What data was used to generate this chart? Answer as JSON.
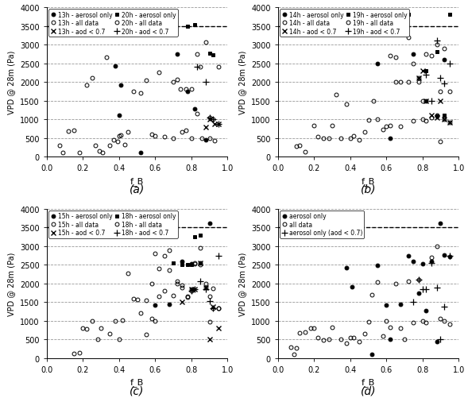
{
  "subplots": [
    {
      "label": "(a)",
      "hours": [
        "13h",
        "20h"
      ],
      "series": [
        {
          "hour": "13h",
          "type": "aerosol only",
          "marker": "o",
          "filled": true,
          "x": [
            0.38,
            0.41,
            0.4,
            0.52,
            0.72,
            0.78,
            0.82,
            0.88
          ],
          "y": [
            2430,
            1920,
            1100,
            100,
            2750,
            1750,
            1270,
            450
          ]
        },
        {
          "hour": "13h",
          "type": "all data",
          "marker": "o",
          "filled": false,
          "x": [
            0.07,
            0.09,
            0.12,
            0.15,
            0.18,
            0.22,
            0.25,
            0.27,
            0.29,
            0.31,
            0.33,
            0.35,
            0.37,
            0.39,
            0.4,
            0.41,
            0.43,
            0.45,
            0.48,
            0.52,
            0.55,
            0.58,
            0.6,
            0.62,
            0.65,
            0.7,
            0.72,
            0.75,
            0.77,
            0.8,
            0.83,
            0.86,
            0.9,
            0.93
          ],
          "y": [
            300,
            100,
            680,
            700,
            100,
            1920,
            2110,
            300,
            150,
            100,
            2650,
            300,
            450,
            400,
            550,
            580,
            330,
            660,
            1750,
            1700,
            2040,
            600,
            550,
            2250,
            530,
            500,
            2060,
            660,
            1800,
            490,
            1150,
            480,
            500,
            430
          ]
        },
        {
          "hour": "13h",
          "type": "aod < 0.7",
          "marker": "x",
          "filled": false,
          "x": [
            0.88,
            0.9,
            0.93,
            0.95
          ],
          "y": [
            790,
            1000,
            870,
            870
          ]
        },
        {
          "hour": "20h",
          "type": "aerosol only",
          "marker": "s",
          "filled": true,
          "x": [
            0.78,
            0.82,
            0.9,
            0.92
          ],
          "y": [
            3500,
            3540,
            2770,
            2730
          ]
        },
        {
          "hour": "20h",
          "type": "all data",
          "marker": "o",
          "filled": false,
          "x": [
            0.7,
            0.74,
            0.77,
            0.8,
            0.83,
            0.85,
            0.88,
            0.9,
            0.92,
            0.95
          ],
          "y": [
            2000,
            1800,
            700,
            1800,
            2750,
            2400,
            3060,
            1050,
            1000,
            2400
          ]
        },
        {
          "hour": "20h",
          "type": "aod < 0.7",
          "marker": "+",
          "filled": false,
          "x": [
            0.83,
            0.88,
            0.9,
            0.92,
            0.95
          ],
          "y": [
            2400,
            2000,
            1050,
            1000,
            870
          ]
        }
      ],
      "hline": 3500,
      "yticks": [
        0,
        500,
        1000,
        1500,
        2000,
        2500,
        3000,
        3500,
        4000
      ],
      "xticks": [
        0.0,
        0.2,
        0.4,
        0.6,
        0.8,
        1.0
      ],
      "show_ylabel": true,
      "show_ytick_labels": true
    },
    {
      "label": "(b)",
      "hours": [
        "14h",
        "19h"
      ],
      "series": [
        {
          "hour": "14h",
          "type": "aerosol only",
          "marker": "o",
          "filled": true,
          "x": [
            0.55,
            0.62,
            0.75,
            0.82,
            0.88,
            0.92
          ],
          "y": [
            2480,
            500,
            2750,
            1500,
            1080,
            2600
          ]
        },
        {
          "hour": "14h",
          "type": "all data",
          "marker": "o",
          "filled": false,
          "x": [
            0.1,
            0.12,
            0.15,
            0.2,
            0.22,
            0.25,
            0.28,
            0.3,
            0.32,
            0.35,
            0.38,
            0.4,
            0.42,
            0.45,
            0.48,
            0.5,
            0.53,
            0.55,
            0.58,
            0.6,
            0.62,
            0.65,
            0.68,
            0.72,
            0.75,
            0.78,
            0.8,
            0.82,
            0.85,
            0.88,
            0.9,
            0.92,
            0.95
          ],
          "y": [
            280,
            300,
            120,
            840,
            540,
            480,
            500,
            830,
            1670,
            500,
            1400,
            480,
            550,
            450,
            660,
            980,
            1500,
            1000,
            730,
            800,
            830,
            2000,
            800,
            2000,
            950,
            2100,
            1000,
            950,
            2700,
            1100,
            400,
            1000,
            920
          ]
        },
        {
          "hour": "14h",
          "type": "aod < 0.7",
          "marker": "x",
          "filled": false,
          "x": [
            0.78,
            0.8,
            0.82,
            0.85,
            0.88,
            0.9,
            0.92,
            0.95
          ],
          "y": [
            2100,
            2300,
            1500,
            1100,
            1050,
            1500,
            1000,
            920
          ]
        },
        {
          "hour": "19h",
          "type": "aerosol only",
          "marker": "s",
          "filled": true,
          "x": [
            0.72,
            0.82,
            0.88,
            0.92,
            0.95
          ],
          "y": [
            3800,
            2300,
            2800,
            1100,
            3800
          ]
        },
        {
          "hour": "19h",
          "type": "all data",
          "marker": "o",
          "filled": false,
          "x": [
            0.62,
            0.65,
            0.68,
            0.72,
            0.75,
            0.78,
            0.8,
            0.82,
            0.85,
            0.88,
            0.9,
            0.92,
            0.95
          ],
          "y": [
            2700,
            2650,
            2000,
            3200,
            2500,
            2000,
            1500,
            2750,
            1050,
            3000,
            1750,
            2900,
            1750
          ]
        },
        {
          "hour": "19h",
          "type": "aod < 0.7",
          "marker": "+",
          "filled": false,
          "x": [
            0.82,
            0.85,
            0.88,
            0.9,
            0.92,
            0.95
          ],
          "y": [
            2200,
            1500,
            3100,
            2100,
            1950,
            2500
          ]
        }
      ],
      "hline": 3500,
      "yticks": [
        0,
        500,
        1000,
        1500,
        2000,
        2500,
        3000,
        3500,
        4000
      ],
      "xticks": [
        0.0,
        0.2,
        0.4,
        0.6,
        0.8,
        1.0
      ],
      "show_ylabel": true,
      "show_ytick_labels": true
    },
    {
      "label": "(c)",
      "hours": [
        "15h",
        "18h"
      ],
      "series": [
        {
          "hour": "15h",
          "type": "aerosol only",
          "marker": "o",
          "filled": true,
          "x": [
            0.6,
            0.68,
            0.75,
            0.8,
            0.85,
            0.9
          ],
          "y": [
            1430,
            1450,
            2600,
            2520,
            2540,
            3620
          ]
        },
        {
          "hour": "15h",
          "type": "all data",
          "marker": "o",
          "filled": false,
          "x": [
            0.15,
            0.18,
            0.2,
            0.22,
            0.25,
            0.28,
            0.3,
            0.35,
            0.38,
            0.4,
            0.42,
            0.45,
            0.48,
            0.5,
            0.52,
            0.55,
            0.58,
            0.6,
            0.62,
            0.65,
            0.68,
            0.72,
            0.75,
            0.78,
            0.8,
            0.82,
            0.85,
            0.88,
            0.9,
            0.92,
            0.95
          ],
          "y": [
            120,
            140,
            800,
            780,
            1000,
            500,
            800,
            650,
            1000,
            500,
            1010,
            2280,
            1600,
            1580,
            1200,
            640,
            1050,
            1000,
            2400,
            1800,
            2900,
            2050,
            1900,
            1650,
            1840,
            2530,
            2500,
            1900,
            980,
            1860,
            1330
          ]
        },
        {
          "hour": "15h",
          "type": "aod < 0.7",
          "marker": "x",
          "filled": false,
          "x": [
            0.75,
            0.8,
            0.82,
            0.85,
            0.88,
            0.9,
            0.92,
            0.95
          ],
          "y": [
            1500,
            1840,
            1840,
            2540,
            1900,
            510,
            1380,
            800
          ]
        },
        {
          "hour": "18h",
          "type": "aerosol only",
          "marker": "s",
          "filled": true,
          "x": [
            0.7,
            0.75,
            0.78,
            0.8,
            0.82,
            0.85
          ],
          "y": [
            2540,
            2500,
            2510,
            2500,
            3250,
            3300
          ]
        },
        {
          "hour": "18h",
          "type": "all data",
          "marker": "o",
          "filled": false,
          "x": [
            0.55,
            0.58,
            0.6,
            0.62,
            0.65,
            0.68,
            0.7,
            0.72,
            0.75,
            0.78,
            0.8,
            0.82,
            0.85,
            0.88,
            0.9,
            0.92,
            0.95
          ],
          "y": [
            1550,
            2000,
            2800,
            1650,
            2750,
            2350,
            1670,
            2000,
            1950,
            1640,
            1800,
            2550,
            2950,
            2000,
            1660,
            1340,
            1330
          ]
        },
        {
          "hour": "18h",
          "type": "aod < 0.7",
          "marker": "+",
          "filled": false,
          "x": [
            0.8,
            0.82,
            0.85,
            0.88,
            0.9,
            0.92,
            0.95
          ],
          "y": [
            1800,
            1840,
            2050,
            1850,
            1530,
            1330,
            2750
          ]
        }
      ],
      "hline": 3500,
      "yticks": [
        0,
        500,
        1000,
        1500,
        2000,
        2500,
        3000,
        3500,
        4000
      ],
      "xticks": [
        0.0,
        0.2,
        0.4,
        0.6,
        0.8,
        1.0
      ],
      "show_ylabel": true,
      "show_ytick_labels": true
    },
    {
      "label": "(d)",
      "hours": [
        "all"
      ],
      "series": [
        {
          "hour": "all",
          "type": "aerosol only",
          "marker": "o",
          "filled": true,
          "x": [
            0.38,
            0.41,
            0.52,
            0.55,
            0.6,
            0.62,
            0.68,
            0.72,
            0.75,
            0.78,
            0.8,
            0.82,
            0.85,
            0.88,
            0.9,
            0.92,
            0.95
          ],
          "y": [
            2430,
            1920,
            100,
            2480,
            1430,
            500,
            1450,
            2750,
            2600,
            1750,
            2520,
            1270,
            2600,
            450,
            3620,
            2770,
            2730
          ]
        },
        {
          "hour": "all",
          "type": "all data",
          "marker": "o",
          "filled": false,
          "x": [
            0.07,
            0.09,
            0.1,
            0.12,
            0.15,
            0.18,
            0.2,
            0.22,
            0.25,
            0.28,
            0.3,
            0.35,
            0.38,
            0.4,
            0.42,
            0.45,
            0.48,
            0.5,
            0.52,
            0.55,
            0.58,
            0.6,
            0.62,
            0.65,
            0.68,
            0.7,
            0.72,
            0.75,
            0.78,
            0.8,
            0.82,
            0.85,
            0.88,
            0.9,
            0.92,
            0.95
          ],
          "y": [
            300,
            100,
            280,
            680,
            700,
            800,
            800,
            540,
            480,
            500,
            830,
            500,
            400,
            550,
            550,
            450,
            660,
            980,
            1700,
            2040,
            600,
            1000,
            830,
            2000,
            800,
            500,
            2060,
            950,
            2100,
            1000,
            950,
            2700,
            3000,
            1050,
            1000,
            920
          ]
        },
        {
          "hour": "all",
          "type": "aerosol only (aod < 0.7)",
          "marker": "+",
          "filled": false,
          "x": [
            0.75,
            0.78,
            0.8,
            0.82,
            0.85,
            0.88,
            0.9,
            0.92,
            0.95
          ],
          "y": [
            1500,
            2100,
            1840,
            1840,
            2540,
            1900,
            510,
            1380,
            2750
          ]
        }
      ],
      "hline": 3500,
      "yticks": [
        0,
        500,
        1000,
        1500,
        2000,
        2500,
        3000,
        3500,
        4000
      ],
      "xticks": [
        0.0,
        0.2,
        0.4,
        0.6,
        0.8,
        1.0
      ],
      "show_ylabel": true,
      "show_ytick_labels": true
    }
  ],
  "ylabel": "VPD @ 28m (Pa)",
  "xlabel": "f_B",
  "ylim": [
    0,
    4000
  ],
  "xlim": [
    0.0,
    1.0
  ],
  "background_color": "#ffffff",
  "grid_color": "#999999",
  "font_size": 7,
  "tick_font_size": 7,
  "label_font_size": 8,
  "sublabel_font_size": 10
}
